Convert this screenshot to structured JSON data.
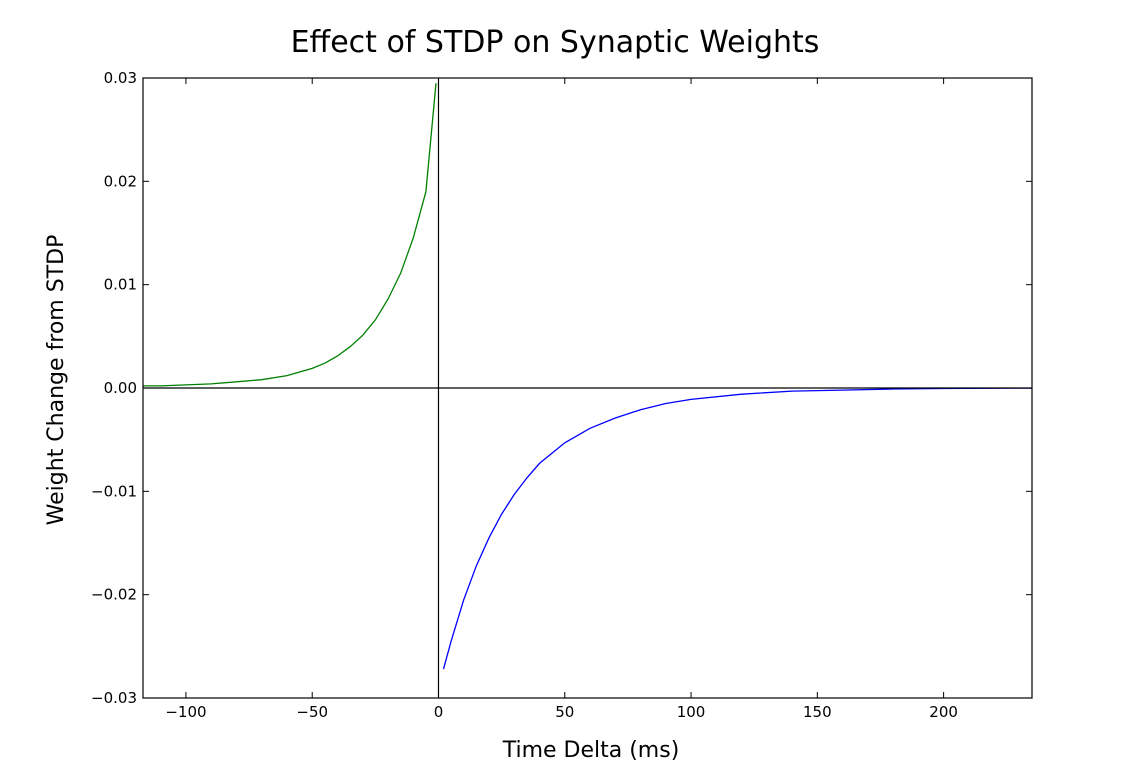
{
  "chart_data": {
    "type": "line",
    "title": "Effect of STDP on Synaptic Weights",
    "xlabel": "Time Delta (ms)",
    "ylabel": "Weight Change from STDP",
    "xlim": [
      -117,
      235
    ],
    "ylim": [
      -0.03,
      0.03
    ],
    "xticks": [
      -100,
      -50,
      0,
      50,
      100,
      150,
      200
    ],
    "xtick_labels": [
      "−100",
      "−50",
      "0",
      "50",
      "100",
      "150",
      "200"
    ],
    "yticks": [
      0.03,
      0.02,
      0.01,
      0.0,
      -0.01,
      -0.02,
      -0.03
    ],
    "ytick_labels": [
      "0.03",
      "0.02",
      "0.01",
      "0.00",
      "−0.01",
      "−0.02",
      "−0.03"
    ],
    "reference_lines": {
      "horizontal_y": 0,
      "vertical_x": 0
    },
    "grid": false,
    "series": [
      {
        "color": "#008000",
        "x": [
          -117,
          -110,
          -100,
          -90,
          -80,
          -70,
          -60,
          -50,
          -45,
          -40,
          -35,
          -30,
          -25,
          -20,
          -15,
          -10,
          -5,
          -1
        ],
        "y": [
          0.0002,
          0.0002,
          0.0003,
          0.0004,
          0.0006,
          0.0008,
          0.0012,
          0.0019,
          0.0024,
          0.0031,
          0.004,
          0.0051,
          0.0066,
          0.0086,
          0.0111,
          0.0145,
          0.019,
          0.0295
        ]
      },
      {
        "color": "#0000ff",
        "x": [
          2,
          5,
          10,
          15,
          20,
          25,
          30,
          35,
          40,
          50,
          60,
          70,
          80,
          90,
          100,
          120,
          140,
          160,
          180,
          200,
          220,
          235
        ],
        "y": [
          -0.0272,
          -0.0245,
          -0.0205,
          -0.0172,
          -0.0145,
          -0.0122,
          -0.0103,
          -0.0087,
          -0.0073,
          -0.0053,
          -0.0039,
          -0.0029,
          -0.0021,
          -0.0015,
          -0.0011,
          -0.0006,
          -0.0003,
          -0.0002,
          -0.0001,
          -5e-05,
          -2e-05,
          -1e-05
        ]
      }
    ]
  }
}
